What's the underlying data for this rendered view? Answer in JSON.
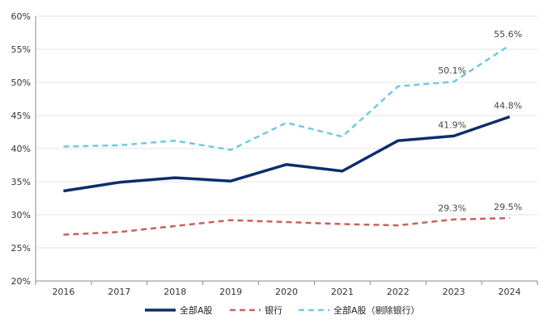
{
  "chart_data": {
    "type": "line",
    "title": "",
    "xlabel": "",
    "ylabel": "",
    "x": [
      "2016",
      "2017",
      "2018",
      "2019",
      "2020",
      "2021",
      "2022",
      "2023",
      "2024"
    ],
    "ylim": [
      20,
      60
    ],
    "ytick_step": 5,
    "ytick_labels": [
      "20%",
      "25%",
      "30%",
      "35%",
      "40%",
      "45%",
      "50%",
      "55%",
      "60%"
    ],
    "grid": true,
    "legend_position": "bottom",
    "series": [
      {
        "name": "全部A股",
        "values": [
          33.6,
          34.9,
          35.6,
          35.1,
          37.6,
          36.6,
          41.2,
          41.9,
          44.8
        ],
        "color": "#0d2d6b",
        "style": "solid",
        "labels": [
          null,
          null,
          null,
          null,
          null,
          null,
          null,
          "41.9%",
          "44.8%"
        ]
      },
      {
        "name": "银行",
        "values": [
          27.0,
          27.4,
          28.3,
          29.2,
          28.9,
          28.6,
          28.4,
          29.3,
          29.5
        ],
        "color": "#c9605a",
        "style": "dashed",
        "labels": [
          null,
          null,
          null,
          null,
          null,
          null,
          null,
          "29.3%",
          "29.5%"
        ]
      },
      {
        "name": "全部A股（剔除银行）",
        "values": [
          40.3,
          40.5,
          41.2,
          39.8,
          43.9,
          41.8,
          49.4,
          50.1,
          55.6
        ],
        "color": "#6fc9e4",
        "style": "dashed",
        "labels": [
          null,
          null,
          null,
          null,
          null,
          null,
          null,
          "50.1%",
          "55.6%"
        ]
      }
    ]
  }
}
